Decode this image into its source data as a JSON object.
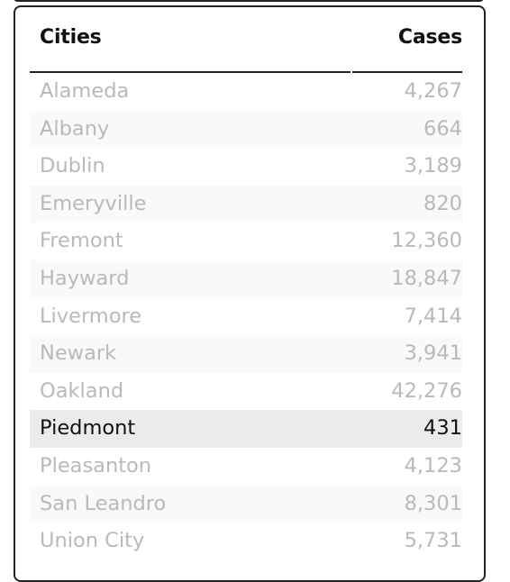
{
  "table": {
    "headers": {
      "city": "Cities",
      "cases": "Cases"
    },
    "selected_city": "Piedmont",
    "rows": [
      {
        "city": "Alameda",
        "cases": "4,267"
      },
      {
        "city": "Albany",
        "cases": "664"
      },
      {
        "city": "Dublin",
        "cases": "3,189"
      },
      {
        "city": "Emeryville",
        "cases": "820"
      },
      {
        "city": "Fremont",
        "cases": "12,360"
      },
      {
        "city": "Hayward",
        "cases": "18,847"
      },
      {
        "city": "Livermore",
        "cases": "7,414"
      },
      {
        "city": "Newark",
        "cases": "3,941"
      },
      {
        "city": "Oakland",
        "cases": "42,276"
      },
      {
        "city": "Piedmont",
        "cases": "431"
      },
      {
        "city": "Pleasanton",
        "cases": "4,123"
      },
      {
        "city": "San Leandro",
        "cases": "8,301"
      },
      {
        "city": "Union City",
        "cases": "5,731"
      }
    ]
  },
  "colors": {
    "row_text_dimmed": "#b9b9b9",
    "row_text_selected": "#111111",
    "row_selected_bg": "#ebebeb",
    "row_alt_bg": "#f9f9f9",
    "border": "#222222"
  }
}
